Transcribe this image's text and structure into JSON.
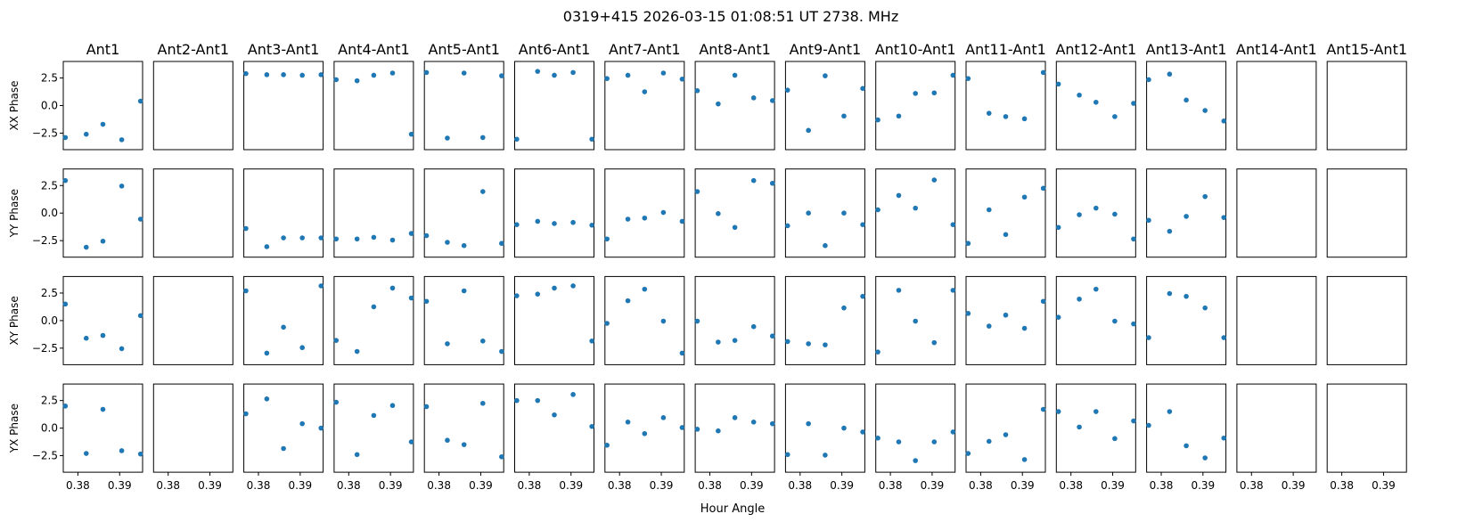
{
  "figure": {
    "suptitle": "0319+415  2026-03-15 01:08:51 UT  2738. MHz",
    "xlabel": "Hour Angle",
    "marker_color": "#1f77b4"
  },
  "chart_data": {
    "type": "scatter",
    "title": "0319+415  2026-03-15 01:08:51 UT  2738. MHz",
    "xlabel": "Hour Angle",
    "columns": [
      "Ant1",
      "Ant2-Ant1",
      "Ant3-Ant1",
      "Ant4-Ant1",
      "Ant5-Ant1",
      "Ant6-Ant1",
      "Ant7-Ant1",
      "Ant8-Ant1",
      "Ant9-Ant1",
      "Ant10-Ant1",
      "Ant11-Ant1",
      "Ant12-Ant1",
      "Ant13-Ant1",
      "Ant14-Ant1",
      "Ant15-Ant1"
    ],
    "rows": [
      "XX Phase",
      "YY Phase",
      "XY Phase",
      "YX Phase"
    ],
    "x": [
      0.377,
      0.382,
      0.386,
      0.3905,
      0.395
    ],
    "xlim": [
      0.3765,
      0.3955
    ],
    "ylim": [
      -4.0,
      4.0
    ],
    "xticks": [
      0.38,
      0.39
    ],
    "xtick_labels": [
      "0.38",
      "0.39"
    ],
    "yticks": [
      2.5,
      0.0,
      -2.5
    ],
    "ytick_labels": [
      "2.5",
      "0.0",
      "−2.5"
    ],
    "grid": false,
    "series": [
      [
        [
          -2.9,
          -2.6,
          -1.7,
          -3.1,
          0.4
        ],
        null,
        [
          2.9,
          2.8,
          2.8,
          2.75,
          2.8
        ],
        [
          2.35,
          2.25,
          2.75,
          2.95,
          -2.6
        ],
        [
          3.0,
          -2.95,
          2.95,
          -2.9,
          2.7
        ],
        [
          -3.05,
          3.1,
          2.75,
          3.0,
          -3.05
        ],
        [
          2.45,
          2.75,
          1.25,
          2.95,
          2.4
        ],
        [
          1.35,
          0.15,
          2.75,
          0.7,
          0.45
        ],
        [
          1.4,
          -2.25,
          2.7,
          -0.95,
          1.55
        ],
        [
          -1.3,
          -0.95,
          1.1,
          1.15,
          2.75
        ],
        [
          2.45,
          -0.7,
          -1.0,
          -1.2,
          3.0
        ],
        [
          1.95,
          0.95,
          0.3,
          -1.0,
          0.2
        ],
        [
          2.35,
          2.85,
          0.5,
          -0.45,
          -1.4
        ],
        null,
        null
      ],
      [
        [
          2.95,
          -3.1,
          -2.55,
          2.45,
          -0.55
        ],
        null,
        [
          -1.4,
          -3.05,
          -2.25,
          -2.25,
          -2.25
        ],
        [
          -2.35,
          -2.35,
          -2.2,
          -2.45,
          -1.85
        ],
        [
          -2.05,
          -2.65,
          -2.95,
          1.95,
          -2.75
        ],
        [
          -1.05,
          -0.75,
          -0.95,
          -0.85,
          -1.1
        ],
        [
          -2.35,
          -0.55,
          -0.45,
          0.05,
          -0.75
        ],
        [
          1.95,
          -0.05,
          -1.3,
          2.95,
          2.7
        ],
        [
          -1.15,
          0.0,
          -2.95,
          0.0,
          -1.05
        ],
        [
          0.3,
          1.6,
          0.45,
          3.0,
          -1.05
        ],
        [
          -2.75,
          0.3,
          -1.95,
          1.45,
          2.25
        ],
        [
          -1.3,
          -0.15,
          0.45,
          -0.1,
          -2.35
        ],
        [
          -0.65,
          -1.65,
          -0.3,
          1.5,
          -0.4
        ],
        null,
        null
      ],
      [
        [
          1.5,
          -1.6,
          -1.35,
          -2.55,
          0.45
        ],
        null,
        [
          2.7,
          -2.95,
          -0.6,
          -2.45,
          3.15
        ],
        [
          -1.8,
          -2.8,
          1.25,
          2.95,
          2.05
        ],
        [
          1.75,
          -2.1,
          2.7,
          -1.85,
          -2.8
        ],
        [
          2.25,
          2.4,
          2.95,
          3.15,
          -1.85
        ],
        [
          -0.25,
          1.8,
          2.85,
          -0.05,
          -2.95
        ],
        [
          -0.05,
          -1.95,
          -1.8,
          -0.55,
          -1.4
        ],
        [
          -1.9,
          -2.1,
          -2.2,
          1.15,
          2.2
        ],
        [
          -2.85,
          2.75,
          -0.05,
          -2.0,
          2.75
        ],
        [
          0.65,
          -0.5,
          0.5,
          -0.7,
          1.75
        ],
        [
          0.3,
          1.95,
          2.85,
          -0.05,
          -0.3
        ],
        [
          -1.55,
          2.45,
          2.2,
          1.15,
          -1.55
        ],
        null,
        null
      ],
      [
        [
          2.0,
          -2.3,
          1.7,
          -2.05,
          -2.35
        ],
        null,
        [
          1.3,
          2.65,
          -1.85,
          0.4,
          0.0
        ],
        [
          2.35,
          -2.4,
          1.15,
          2.05,
          -1.25
        ],
        [
          1.95,
          -1.1,
          -1.5,
          2.25,
          -2.6
        ],
        [
          2.5,
          2.5,
          1.2,
          3.05,
          0.15
        ],
        [
          -1.55,
          0.55,
          -0.5,
          0.95,
          0.05
        ],
        [
          -0.1,
          -0.25,
          0.95,
          0.55,
          0.4
        ],
        [
          -2.4,
          0.4,
          -2.45,
          0.0,
          -0.35
        ],
        [
          -0.9,
          -1.25,
          -2.95,
          -1.25,
          -0.35
        ],
        [
          -2.3,
          -1.2,
          -0.6,
          -2.85,
          1.7
        ],
        [
          1.5,
          0.1,
          1.5,
          -0.95,
          0.65
        ],
        [
          0.25,
          1.5,
          -1.6,
          -2.7,
          -0.9
        ],
        null,
        null
      ]
    ]
  }
}
